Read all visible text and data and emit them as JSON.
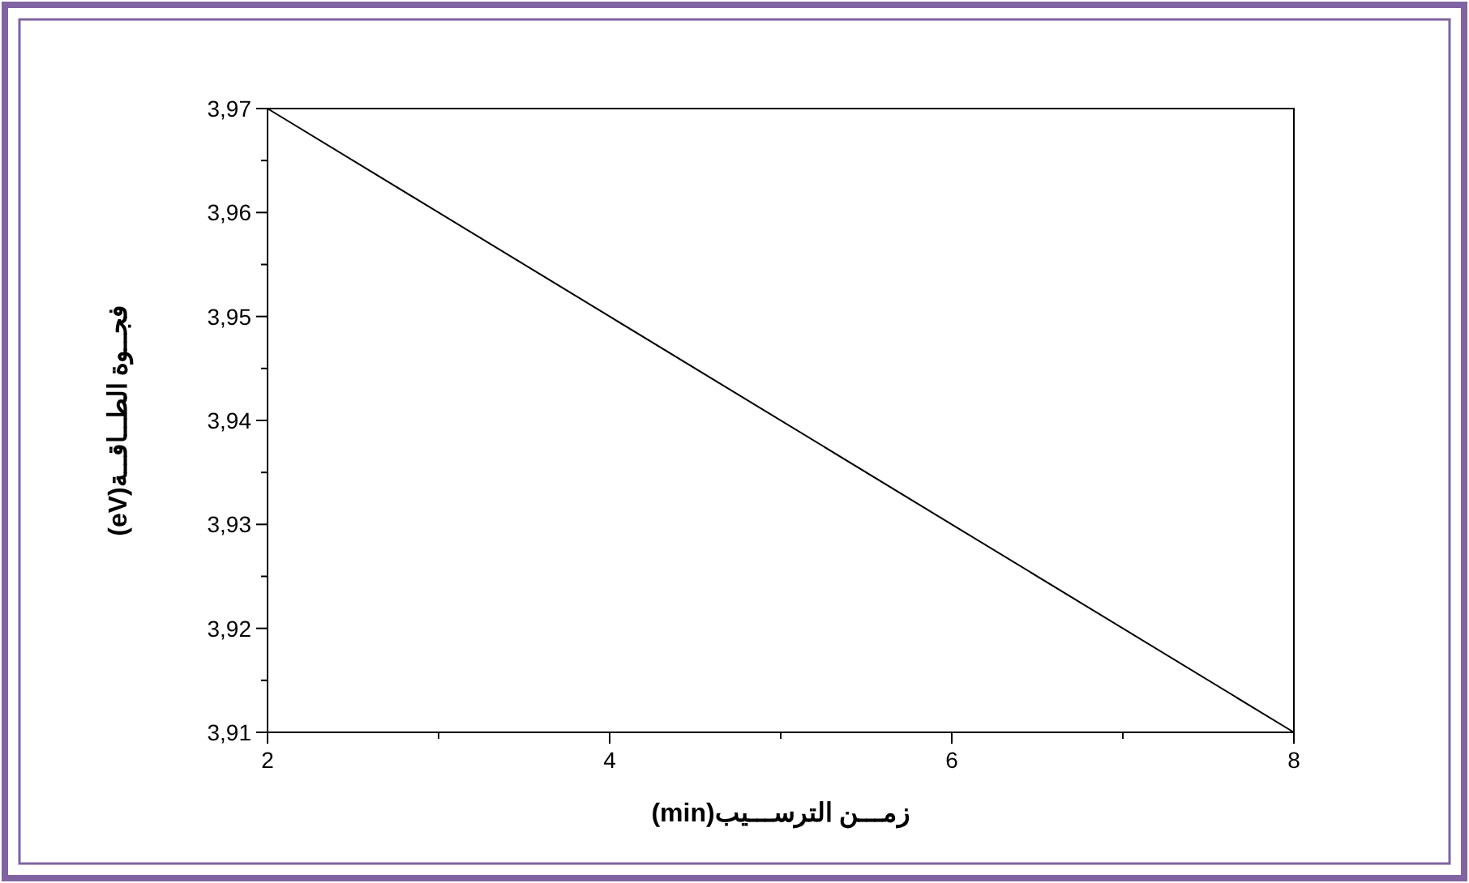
{
  "chart_data": {
    "type": "line",
    "xlabel": "زمـــن الترســـيب(min)",
    "ylabel": "فجــوة الطــاقــة(eV)",
    "x": [
      2,
      4,
      6,
      8
    ],
    "series": [
      {
        "color": "#000000",
        "values": [
          3.97,
          3.95,
          3.93,
          3.91
        ]
      }
    ],
    "xlim": [
      2,
      8
    ],
    "xticks": [
      2,
      4,
      6,
      8
    ],
    "ylim": [
      3.91,
      3.97
    ],
    "yticks": [
      {
        "value": 3.91,
        "label": "3,91"
      },
      {
        "value": 3.92,
        "label": "3,92"
      },
      {
        "value": 3.93,
        "label": "3,93"
      },
      {
        "value": 3.94,
        "label": "3,94"
      },
      {
        "value": 3.95,
        "label": "3,95"
      },
      {
        "value": 3.96,
        "label": "3,96"
      },
      {
        "value": 3.97,
        "label": "3,97"
      }
    ],
    "grid": false,
    "marker": "none",
    "line_style": "solid"
  }
}
